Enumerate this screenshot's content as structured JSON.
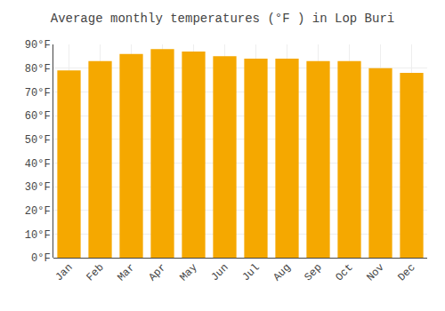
{
  "chart_data": {
    "type": "bar",
    "title": "Average monthly temperatures (°F ) in Lop Buri",
    "categories": [
      "Jan",
      "Feb",
      "Mar",
      "Apr",
      "May",
      "Jun",
      "Jul",
      "Aug",
      "Sep",
      "Oct",
      "Nov",
      "Dec"
    ],
    "values": [
      79,
      83,
      86,
      88,
      87,
      85,
      84,
      84,
      83,
      83,
      80,
      78
    ],
    "color": "#F5A800",
    "ylim": [
      0,
      90
    ],
    "yticks": [
      {
        "value": 0,
        "label": "0°F"
      },
      {
        "value": 10,
        "label": "10°F"
      },
      {
        "value": 20,
        "label": "20°F"
      },
      {
        "value": 30,
        "label": "30°F"
      },
      {
        "value": 40,
        "label": "40°F"
      },
      {
        "value": 50,
        "label": "50°F"
      },
      {
        "value": 60,
        "label": "60°F"
      },
      {
        "value": 70,
        "label": "70°F"
      },
      {
        "value": 80,
        "label": "80°F"
      },
      {
        "value": 90,
        "label": "90°F"
      }
    ],
    "grid": true
  }
}
